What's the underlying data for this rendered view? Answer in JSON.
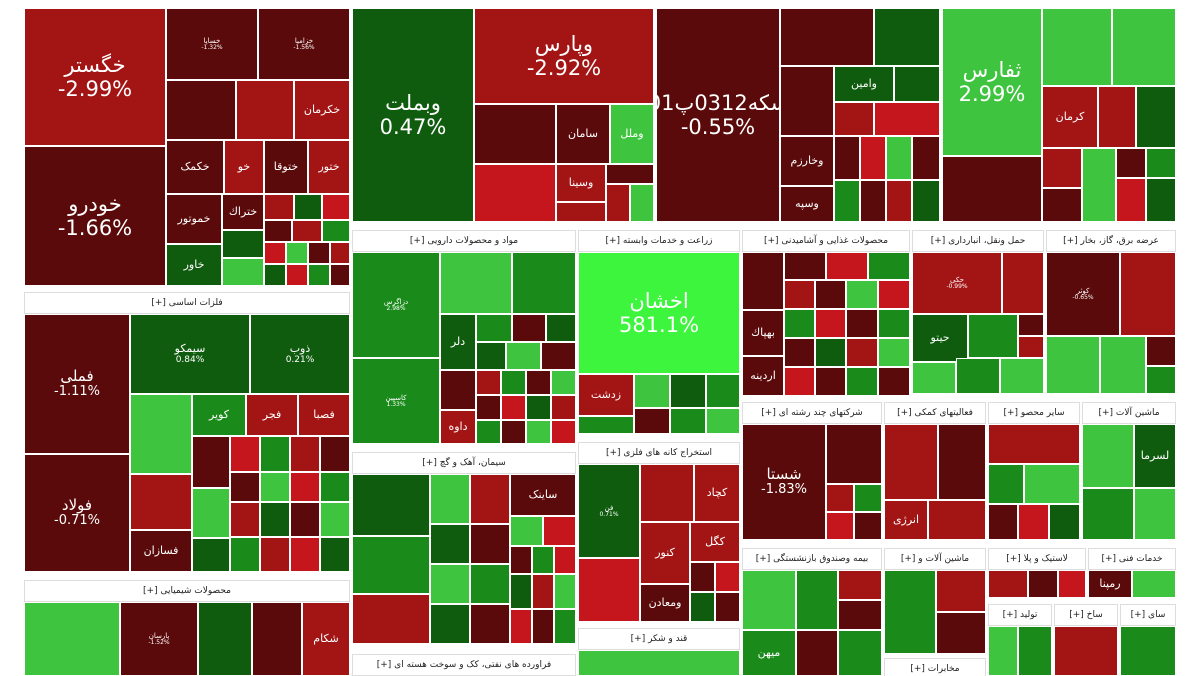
{
  "colors": {
    "dark_red": "#5a0a0a",
    "red": "#a31515",
    "mid_red": "#c4161c",
    "dark_green": "#0f5c0f",
    "green": "#1a8a1a",
    "light_green": "#3fc43f",
    "lime": "#3cf53c"
  },
  "headers": [
    {
      "id": "h-felezat",
      "label": "فلزات اساسی [+]"
    },
    {
      "id": "h-shimi",
      "label": "محصولات شیمیایی [+]"
    },
    {
      "id": "h-daroo",
      "label": "مواد و محصولات دارویی [+]"
    },
    {
      "id": "h-siman",
      "label": "سیمان، آهک و گچ [+]"
    },
    {
      "id": "h-farav",
      "label": "فراورده های نفتی، کک و سوخت هسته ای [+]"
    },
    {
      "id": "h-zeraat",
      "label": "زراعت و خدمات وابسته [+]"
    },
    {
      "id": "h-estekhraj",
      "label": "استخراج کانه های فلزی [+]"
    },
    {
      "id": "h-ghand",
      "label": "قند و شکر [+]"
    },
    {
      "id": "h-ghaza",
      "label": "محصولات غذایی و آشامیدنی [+]"
    },
    {
      "id": "h-haml",
      "label": "حمل ونقل، انبارداری [+]"
    },
    {
      "id": "h-bargh",
      "label": "عرضه برق، گاز، بخار [+]"
    },
    {
      "id": "h-chand",
      "label": "شرکتهای چند رشته ای [+]"
    },
    {
      "id": "h-komaki",
      "label": "فعالیتهای کمکی [+]"
    },
    {
      "id": "h-sayer",
      "label": "سایر محصو [+]"
    },
    {
      "id": "h-mashin",
      "label": "ماشین آلات [+]"
    },
    {
      "id": "h-bimeh",
      "label": "بیمه وصندوق بازنشستگی [+]"
    },
    {
      "id": "h-mashin2",
      "label": "ماشین آلات و [+]"
    },
    {
      "id": "h-lastik",
      "label": "لاستیک و پلا [+]"
    },
    {
      "id": "h-khadamat",
      "label": "خدمات فنی [+]"
    },
    {
      "id": "h-tolid",
      "label": "تولید [+]"
    },
    {
      "id": "h-sakht",
      "label": "ساخ [+]"
    },
    {
      "id": "h-sayer2",
      "label": "سای [+]"
    },
    {
      "id": "h-mokhaberat",
      "label": "مخابرات [+]"
    }
  ],
  "tiles": [
    {
      "name": "خگستر",
      "pct": "-2.99%",
      "c": "red"
    },
    {
      "name": "خودرو",
      "pct": "-1.66%",
      "c": "dark_red"
    },
    {
      "name": "خساپا",
      "pct": "-1.32%",
      "c": "dark_red"
    },
    {
      "name": "خزامیا",
      "pct": "-1.56%",
      "c": "dark_red"
    },
    {
      "name": "خکرمان",
      "pct": "",
      "c": "red"
    },
    {
      "name": "خکمک",
      "pct": "",
      "c": "dark_red"
    },
    {
      "name": "خو",
      "pct": "",
      "c": "red"
    },
    {
      "name": "ختوقا",
      "pct": "",
      "c": "dark_red"
    },
    {
      "name": "ختور",
      "pct": "",
      "c": "red"
    },
    {
      "name": "خموتور",
      "pct": "",
      "c": "dark_red"
    },
    {
      "name": "ختراك",
      "pct": "",
      "c": "dark_red"
    },
    {
      "name": "خاور",
      "pct": "",
      "c": "dark_green"
    },
    {
      "name": "فملی",
      "pct": "-1.11%",
      "c": "dark_red"
    },
    {
      "name": "فولاد",
      "pct": "-0.71%",
      "c": "dark_red"
    },
    {
      "name": "سیمکو",
      "pct": "0.84%",
      "c": "dark_green"
    },
    {
      "name": "ذوب",
      "pct": "0.21%",
      "c": "dark_green"
    },
    {
      "name": "کویر",
      "pct": "",
      "c": "green"
    },
    {
      "name": "فجر",
      "pct": "",
      "c": "red"
    },
    {
      "name": "فصبا",
      "pct": "",
      "c": "red"
    },
    {
      "name": "فسازان",
      "pct": "",
      "c": "dark_red"
    },
    {
      "name": "وبملت",
      "pct": "0.47%",
      "c": "dark_green"
    },
    {
      "name": "وپارس",
      "pct": "-2.92%",
      "c": "red"
    },
    {
      "name": "سامان",
      "pct": "",
      "c": "dark_red"
    },
    {
      "name": "وملل",
      "pct": "",
      "c": "light_green"
    },
    {
      "name": "وسینا",
      "pct": "",
      "c": "red"
    },
    {
      "name": "سکه0312پ01",
      "pct": "-0.55%",
      "c": "dark_red"
    },
    {
      "name": "وامین",
      "pct": "",
      "c": "dark_green"
    },
    {
      "name": "وخارزم",
      "pct": "",
      "c": "dark_red"
    },
    {
      "name": "وسپه",
      "pct": "",
      "c": "dark_red"
    },
    {
      "name": "ثفارس",
      "pct": "2.99%",
      "c": "light_green"
    },
    {
      "name": "کرمان",
      "pct": "",
      "c": "red"
    },
    {
      "name": "دزاگرس",
      "pct": "2.98%",
      "c": "green"
    },
    {
      "name": "کاسپین",
      "pct": "1.33%",
      "c": "green"
    },
    {
      "name": "دلر",
      "pct": "",
      "c": "dark_green"
    },
    {
      "name": "داوه",
      "pct": "",
      "c": "red"
    },
    {
      "name": "اخشان",
      "pct": "581.1%",
      "c": "lime"
    },
    {
      "name": "زدشت",
      "pct": "",
      "c": "red"
    },
    {
      "name": "کچاد",
      "pct": "",
      "c": "red"
    },
    {
      "name": "کگل",
      "pct": "",
      "c": "red"
    },
    {
      "name": "کنور",
      "pct": "",
      "c": "red"
    },
    {
      "name": "ومعادن",
      "pct": "",
      "c": "dark_red"
    },
    {
      "name": "فن",
      "pct": "0.71%",
      "c": "dark_green"
    },
    {
      "name": "ساینک",
      "pct": "",
      "c": "dark_red"
    },
    {
      "name": "شستا",
      "pct": "-1.83%",
      "c": "dark_red"
    },
    {
      "name": "انرژی",
      "pct": "",
      "c": "red"
    },
    {
      "name": "حیتو",
      "pct": "",
      "c": "dark_green"
    },
    {
      "name": "حکی",
      "pct": "-0.99%",
      "c": "red"
    },
    {
      "name": "کوثر",
      "pct": "-0.65%",
      "c": "dark_red"
    },
    {
      "name": "رمپنا",
      "pct": "",
      "c": "dark_red"
    },
    {
      "name": "لسرما",
      "pct": "",
      "c": "dark_green"
    },
    {
      "name": "شکام",
      "pct": "",
      "c": "red"
    },
    {
      "name": "پارسان",
      "pct": "-1.52%",
      "c": "dark_red"
    },
    {
      "name": "بهپاك",
      "pct": "",
      "c": "dark_red"
    },
    {
      "name": "اردینه",
      "pct": "",
      "c": "dark_red"
    },
    {
      "name": "میهن",
      "pct": "",
      "c": "green"
    }
  ]
}
